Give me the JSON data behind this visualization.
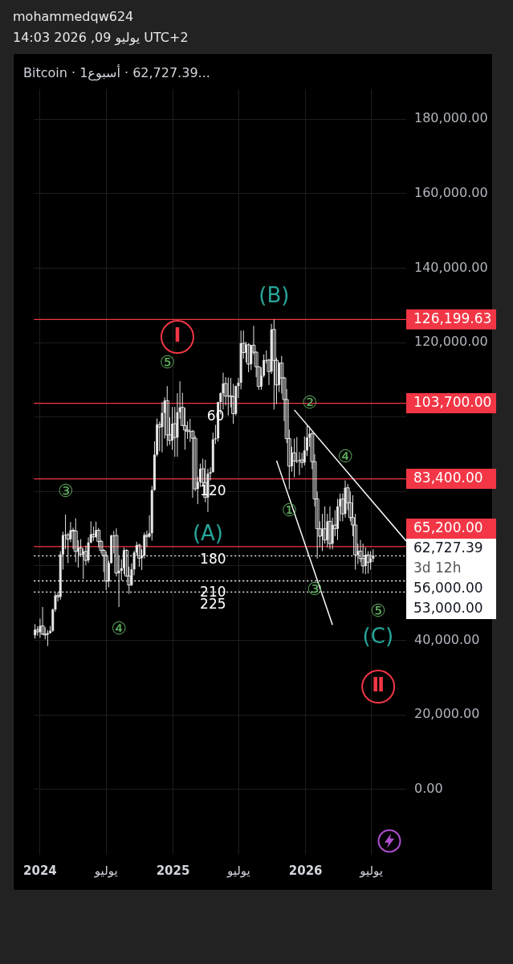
{
  "chart_data": {
    "type": "candlestick",
    "title": "Bitcoin · 1أسبوع · 62,727.39...",
    "subtitle": "mohammedqw624\n14:03 2026 ,09 يوليو UTC+2",
    "series": [
      {
        "type": "candlestick",
        "color": "#e6e6e6",
        "x": [
          "2023-12-18",
          "2023-12-25",
          "2024-01-01",
          "2024-01-08",
          "2024-01-15",
          "2024-01-22",
          "2024-01-29",
          "2024-02-05",
          "2024-02-12",
          "2024-02-19",
          "2024-02-26",
          "2024-03-04",
          "2024-03-11",
          "2024-03-18",
          "2024-03-25",
          "2024-04-01",
          "2024-04-08",
          "2024-04-15",
          "2024-04-22",
          "2024-04-29",
          "2024-05-06",
          "2024-05-13",
          "2024-05-20",
          "2024-05-27",
          "2024-06-03",
          "2024-06-10",
          "2024-06-17",
          "2024-06-24",
          "2024-07-01",
          "2024-07-08",
          "2024-07-15",
          "2024-07-22",
          "2024-07-29",
          "2024-08-05",
          "2024-08-12",
          "2024-08-19",
          "2024-08-26",
          "2024-09-02",
          "2024-09-09",
          "2024-09-16",
          "2024-09-23",
          "2024-09-30",
          "2024-10-07",
          "2024-10-14",
          "2024-10-21",
          "2024-10-28",
          "2024-11-04",
          "2024-11-11",
          "2024-11-18",
          "2024-11-25",
          "2024-12-02",
          "2024-12-09",
          "2024-12-16",
          "2024-12-23",
          "2024-12-30",
          "2025-01-06",
          "2025-01-13",
          "2025-01-20",
          "2025-01-27",
          "2025-02-03",
          "2025-02-10",
          "2025-02-17",
          "2025-02-24",
          "2025-03-03",
          "2025-03-10",
          "2025-03-17",
          "2025-03-24",
          "2025-03-31",
          "2025-04-07",
          "2025-04-14",
          "2025-04-21",
          "2025-04-28",
          "2025-05-05",
          "2025-05-12",
          "2025-05-19",
          "2025-05-26",
          "2025-06-02",
          "2025-06-09",
          "2025-06-16",
          "2025-06-23",
          "2025-06-30",
          "2025-07-07",
          "2025-07-14",
          "2025-07-21",
          "2025-07-28",
          "2025-08-04",
          "2025-08-11",
          "2025-08-18",
          "2025-08-25",
          "2025-09-01",
          "2025-09-08",
          "2025-09-15",
          "2025-09-22",
          "2025-09-29",
          "2025-10-06",
          "2025-10-13",
          "2025-10-20",
          "2025-10-27",
          "2025-11-03",
          "2025-11-10",
          "2025-11-17",
          "2025-11-24",
          "2025-12-01",
          "2025-12-08",
          "2025-12-15",
          "2025-12-22",
          "2025-12-29",
          "2026-01-05",
          "2026-01-12",
          "2026-01-19",
          "2026-01-26",
          "2026-02-02",
          "2026-02-09",
          "2026-02-16",
          "2026-02-23",
          "2026-03-02",
          "2026-03-09",
          "2026-03-16",
          "2026-03-23",
          "2026-03-30",
          "2026-04-06",
          "2026-04-13",
          "2026-04-20",
          "2026-04-27",
          "2026-05-04",
          "2026-05-11",
          "2026-05-18",
          "2026-05-25",
          "2026-06-01",
          "2026-06-08",
          "2026-06-15",
          "2026-06-22",
          "2026-06-29",
          "2026-07-06"
        ],
        "ohlc": [
          [
            41400,
            44400,
            40500,
            42900
          ],
          [
            42900,
            43800,
            41300,
            42300
          ],
          [
            42300,
            45900,
            40700,
            43900
          ],
          [
            43900,
            49000,
            41500,
            41700
          ],
          [
            41700,
            43600,
            40300,
            41600
          ],
          [
            41600,
            42800,
            38500,
            42000
          ],
          [
            42000,
            43900,
            41800,
            42600
          ],
          [
            42600,
            48600,
            42300,
            48300
          ],
          [
            48300,
            52800,
            47700,
            52100
          ],
          [
            52100,
            52900,
            50500,
            51700
          ],
          [
            51700,
            64000,
            50900,
            63100
          ],
          [
            63100,
            69200,
            59000,
            68300
          ],
          [
            68300,
            73800,
            64500,
            68400
          ],
          [
            68400,
            68900,
            60800,
            67200
          ],
          [
            67200,
            71800,
            66400,
            69600
          ],
          [
            69600,
            70300,
            64500,
            69400
          ],
          [
            69400,
            72800,
            61000,
            63900
          ],
          [
            63900,
            66900,
            59600,
            64900
          ],
          [
            64900,
            67200,
            62400,
            63100
          ],
          [
            63100,
            64700,
            56500,
            63900
          ],
          [
            63900,
            65500,
            60200,
            61500
          ],
          [
            61500,
            67700,
            60800,
            66300
          ],
          [
            66300,
            72000,
            66100,
            68500
          ],
          [
            68500,
            70600,
            66700,
            67800
          ],
          [
            67800,
            71900,
            67600,
            69600
          ],
          [
            69600,
            70200,
            65000,
            66600
          ],
          [
            66600,
            67000,
            63400,
            64200
          ],
          [
            64200,
            64500,
            58400,
            62800
          ],
          [
            62800,
            63900,
            53500,
            55900
          ],
          [
            55900,
            61400,
            54300,
            60800
          ],
          [
            60800,
            68400,
            60600,
            68200
          ],
          [
            68200,
            69400,
            63400,
            68200
          ],
          [
            68200,
            70100,
            57200,
            58100
          ],
          [
            58100,
            62700,
            49000,
            58700
          ],
          [
            58700,
            61800,
            56100,
            59400
          ],
          [
            59400,
            65000,
            57800,
            64200
          ],
          [
            64200,
            64500,
            57200,
            57300
          ],
          [
            57300,
            59800,
            52500,
            54900
          ],
          [
            54900,
            60700,
            54600,
            59100
          ],
          [
            59100,
            64100,
            57500,
            63600
          ],
          [
            63600,
            66500,
            62700,
            65600
          ],
          [
            65600,
            66000,
            59800,
            62100
          ],
          [
            62100,
            64500,
            58900,
            62800
          ],
          [
            62800,
            69000,
            62000,
            68300
          ],
          [
            68300,
            69500,
            65100,
            67900
          ],
          [
            67900,
            73600,
            67500,
            68800
          ],
          [
            68800,
            81500,
            66800,
            80400
          ],
          [
            80400,
            93500,
            80200,
            89900
          ],
          [
            89900,
            99600,
            89400,
            98000
          ],
          [
            98000,
            98800,
            90800,
            97300
          ],
          [
            97300,
            104000,
            90500,
            101100
          ],
          [
            101100,
            105300,
            94200,
            104400
          ],
          [
            104400,
            108300,
            92200,
            95200
          ],
          [
            95200,
            99900,
            92500,
            93700
          ],
          [
            93700,
            102700,
            91200,
            98200
          ],
          [
            98200,
            102700,
            89300,
            94500
          ],
          [
            94500,
            106400,
            89300,
            101300
          ],
          [
            101300,
            109600,
            99500,
            102600
          ],
          [
            102600,
            106500,
            97700,
            97700
          ],
          [
            97700,
            102500,
            91200,
            96500
          ],
          [
            96500,
            98800,
            94100,
            96100
          ],
          [
            96100,
            99500,
            93300,
            96200
          ],
          [
            96200,
            96500,
            78300,
            94300
          ],
          [
            94300,
            95000,
            80100,
            80700
          ],
          [
            80700,
            84000,
            76600,
            82600
          ],
          [
            82600,
            87500,
            81200,
            86100
          ],
          [
            86100,
            88800,
            81600,
            82400
          ],
          [
            82400,
            88500,
            77100,
            78400
          ],
          [
            78400,
            86100,
            74500,
            84800
          ],
          [
            84800,
            86500,
            83000,
            85200
          ],
          [
            85200,
            95800,
            85100,
            94000
          ],
          [
            94000,
            97900,
            92800,
            94300
          ],
          [
            94300,
            104100,
            93400,
            104000
          ],
          [
            104000,
            106600,
            100700,
            106400
          ],
          [
            106400,
            111900,
            102000,
            109000
          ],
          [
            109000,
            110700,
            103100,
            105600
          ],
          [
            105600,
            110600,
            100400,
            105700
          ],
          [
            105700,
            110500,
            102600,
            105500
          ],
          [
            105500,
            108900,
            98200,
            100900
          ],
          [
            100900,
            108500,
            100400,
            108300
          ],
          [
            108300,
            110500,
            105100,
            109200
          ],
          [
            109200,
            123200,
            107400,
            119800
          ],
          [
            119800,
            123200,
            115700,
            117300
          ],
          [
            117300,
            120200,
            114700,
            119400
          ],
          [
            119400,
            119800,
            112000,
            114200
          ],
          [
            114200,
            119300,
            112600,
            119300
          ],
          [
            119300,
            124500,
            116800,
            117400
          ],
          [
            117400,
            117600,
            110700,
            113500
          ],
          [
            113500,
            113600,
            107300,
            108200
          ],
          [
            108200,
            113400,
            107300,
            111100
          ],
          [
            111100,
            116800,
            110600,
            115300
          ],
          [
            115300,
            117900,
            114400,
            115300
          ],
          [
            115300,
            115600,
            108600,
            112200
          ],
          [
            112200,
            125000,
            111600,
            123500
          ],
          [
            123500,
            126200,
            102000,
            115200
          ],
          [
            115200,
            115900,
            103500,
            108600
          ],
          [
            108600,
            114700,
            106700,
            114500
          ],
          [
            114500,
            116400,
            106300,
            110500
          ],
          [
            110500,
            110800,
            98900,
            104700
          ],
          [
            104700,
            107500,
            93000,
            94200
          ],
          [
            94200,
            96600,
            80600,
            86800
          ],
          [
            86800,
            92000,
            85300,
            90400
          ],
          [
            90400,
            94200,
            83800,
            88200
          ],
          [
            88200,
            94600,
            87600,
            88200
          ],
          [
            88200,
            90600,
            84400,
            88500
          ],
          [
            88500,
            90400,
            86400,
            87800
          ],
          [
            87800,
            94800,
            87000,
            91000
          ],
          [
            91000,
            97900,
            89500,
            94500
          ],
          [
            94500,
            97500,
            92000,
            95500
          ],
          [
            95500,
            96000,
            86000,
            88000
          ],
          [
            88000,
            90000,
            76000,
            78000
          ],
          [
            78000,
            80000,
            62000,
            70000
          ],
          [
            70000,
            72000,
            65000,
            68000
          ],
          [
            68000,
            74000,
            64000,
            70000
          ],
          [
            70000,
            76000,
            66000,
            67000
          ],
          [
            67000,
            74000,
            65000,
            72000
          ],
          [
            72000,
            76000,
            64500,
            66000
          ],
          [
            66000,
            73000,
            64500,
            71000
          ],
          [
            71000,
            75000,
            68000,
            70000
          ],
          [
            70000,
            78000,
            67000,
            76000
          ],
          [
            76000,
            79500,
            72000,
            78000
          ],
          [
            78000,
            79500,
            72000,
            74000
          ],
          [
            74000,
            83000,
            73000,
            81000
          ],
          [
            81000,
            82000,
            75000,
            77000
          ],
          [
            77000,
            80000,
            72000,
            73000
          ],
          [
            73000,
            79000,
            68000,
            71000
          ],
          [
            71000,
            74000,
            59000,
            63000
          ],
          [
            63000,
            66000,
            60500,
            64000
          ],
          [
            64000,
            67000,
            61000,
            62000
          ],
          [
            62000,
            66000,
            58000,
            60000
          ],
          [
            60000,
            65000,
            57800,
            63000
          ],
          [
            63000,
            64000,
            58000,
            61000
          ],
          [
            61000,
            64000,
            59000,
            62000
          ],
          [
            62000,
            64500,
            61000,
            62727.39
          ]
        ]
      },
      {
        "type": "line",
        "color": "#ffffff",
        "x": [
          "2025-10-13",
          "2026-03-16"
        ],
        "values": [
          88300,
          44200
        ]
      },
      {
        "type": "line",
        "color": "#ffffff",
        "x": [
          "2025-12-01",
          "2026-10-05"
        ],
        "values": [
          101900,
          66700
        ]
      }
    ],
    "marker": "none",
    "line_style": "solid",
    "grid": true,
    "xlim": [
      "2023-12-15",
      "2026-10-05"
    ],
    "xticks": [
      {
        "value": "2024-01-01",
        "label": "2024"
      },
      {
        "value": "2024-07-01",
        "label": "يوليو"
      },
      {
        "value": "2025-01-01",
        "label": "2025"
      },
      {
        "value": "2025-07-01",
        "label": "يوليو"
      },
      {
        "value": "2026-01-01",
        "label": "2026"
      },
      {
        "value": "2026-07-01",
        "label": "يوليو"
      }
    ],
    "ylim": [
      -17500,
      188000
    ],
    "yticks": [
      {
        "value": 0,
        "label": "0.00"
      },
      {
        "value": 20000,
        "label": "20,000.00"
      },
      {
        "value": 40000,
        "label": "40,000.00"
      },
      {
        "value": 60000,
        "label": null
      },
      {
        "value": 80000,
        "label": null
      },
      {
        "value": 100000,
        "label": null
      },
      {
        "value": 120000,
        "label": "120,000.00"
      },
      {
        "value": 140000,
        "label": "140,000.00"
      },
      {
        "value": 160000,
        "label": "160,000.00"
      },
      {
        "value": 180000,
        "label": "180,000.00"
      }
    ],
    "ref_lines": [
      {
        "axis": "y",
        "value": 126199.63,
        "label": "126,199.63",
        "color": "#f23645",
        "line_style": "solid"
      },
      {
        "axis": "y",
        "value": 103700,
        "label": "103,700.00",
        "color": "#f23645",
        "line_style": "solid"
      },
      {
        "axis": "y",
        "value": 83400,
        "label": "83,400.00",
        "color": "#f23645",
        "line_style": "solid"
      },
      {
        "axis": "y",
        "value": 65200,
        "label": "65,200.00",
        "color": "#f23645",
        "line_style": "solid"
      },
      {
        "axis": "y",
        "value": 62727.39,
        "label": "62,727.39\n3d 12h",
        "color": "#ffffff",
        "line_style": "dotted"
      },
      {
        "axis": "y",
        "value": 56000,
        "label": "56,000.00",
        "color": "#ffffff",
        "line_style": "dotted"
      },
      {
        "axis": "y",
        "value": 53000,
        "label": "53,000.00",
        "color": "#ffffff",
        "line_style": "dotted"
      }
    ],
    "annotations": [
      {
        "text": "③",
        "x": "2024-03-11",
        "y": 73800
      },
      {
        "text": "④",
        "x": "2024-08-05",
        "y": 49000
      },
      {
        "text": "⑤",
        "x": "2024-12-16",
        "y": 108300
      },
      {
        "text": "Ⅰ",
        "x": "2025-01-13",
        "y": 121500
      },
      {
        "text": "(A)",
        "x": "2025-04-07",
        "y": 74500
      },
      {
        "text": "(B)",
        "x": "2025-10-06",
        "y": 126200
      },
      {
        "text": "60",
        "x": "2025-04-28",
        "y": 100000
      },
      {
        "text": "120",
        "x": "2025-04-21",
        "y": 83400
      },
      {
        "text": "180",
        "x": "2025-04-21",
        "y": 61700
      },
      {
        "text": "210",
        "x": "2025-04-21",
        "y": 52700
      },
      {
        "text": "225",
        "x": "2025-04-21",
        "y": 53000
      },
      {
        "text": "①",
        "x": "2025-11-17",
        "y": 80600
      },
      {
        "text": "②",
        "x": "2026-01-12",
        "y": 97500
      },
      {
        "text": "③",
        "x": "2026-01-26",
        "y": 53500
      },
      {
        "text": "④",
        "x": "2026-04-20",
        "y": 83000
      },
      "⑤",
      "(C)",
      {
        "text": "Ⅱ",
        "x": "2026-07-20",
        "y": 27600
      }
    ]
  }
}
